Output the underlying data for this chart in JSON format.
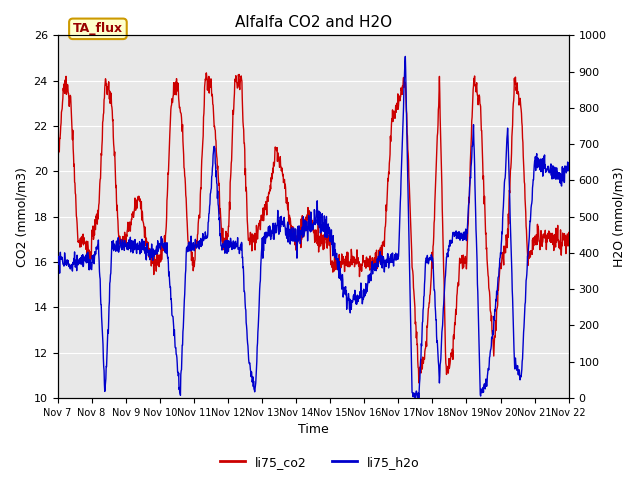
{
  "title": "Alfalfa CO2 and H2O",
  "xlabel": "Time",
  "ylabel_left": "CO2 (mmol/m3)",
  "ylabel_right": "H2O (mmol/m3)",
  "ylim_left": [
    10,
    26
  ],
  "ylim_right": [
    0,
    1000
  ],
  "yticks_left": [
    10,
    12,
    14,
    16,
    18,
    20,
    22,
    24,
    26
  ],
  "yticks_right": [
    0,
    100,
    200,
    300,
    400,
    500,
    600,
    700,
    800,
    900,
    1000
  ],
  "xtick_labels": [
    "Nov 7",
    "Nov 8",
    "Nov 9",
    "Nov 10",
    "Nov 11",
    "Nov 12",
    "Nov 13",
    "Nov 14",
    "Nov 15",
    "Nov 16",
    "Nov 17",
    "Nov 18",
    "Nov 19",
    "Nov 20",
    "Nov 21",
    "Nov 22"
  ],
  "legend_labels": [
    "li75_co2",
    "li75_h2o"
  ],
  "co2_color": "#cc0000",
  "h2o_color": "#0000cc",
  "plot_bg_color": "#e8e8e8",
  "fig_bg_color": "#ffffff",
  "grid_color": "#ffffff",
  "annotation_text": "TA_flux",
  "annotation_fg": "#990000",
  "annotation_bg": "#ffffcc",
  "annotation_border": "#cc9900",
  "line_width": 1.0,
  "title_fontsize": 11,
  "axis_fontsize": 9,
  "tick_fontsize": 8,
  "legend_fontsize": 9
}
